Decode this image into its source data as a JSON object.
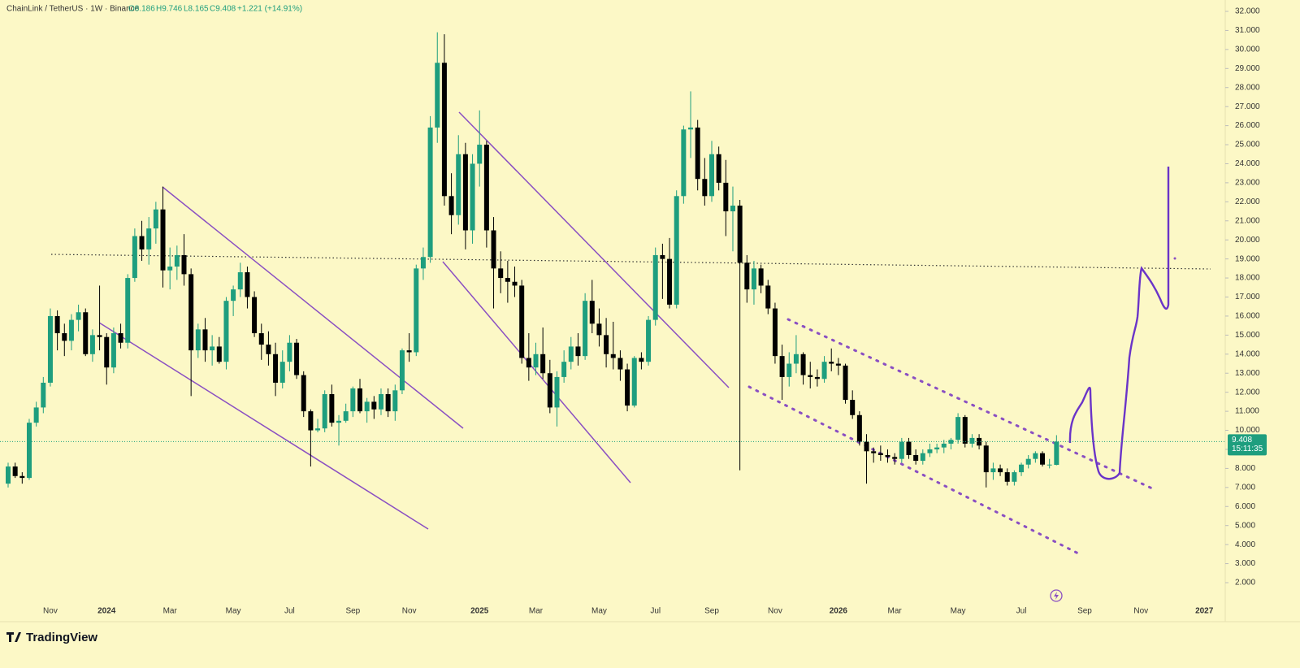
{
  "header": {
    "symbol": "ChainLink / TetherUS · 1W · Binance",
    "open": "O8.186",
    "high": "H9.746",
    "low": "L8.165",
    "close": "C9.408",
    "change": "+1.221 (+14.91%)"
  },
  "chart_data": {
    "type": "candlestick",
    "up_color": "#1e9e7e",
    "down_color": "#000000",
    "ylim": [
      2,
      32
    ],
    "yticks": [
      {
        "value": 2,
        "label": "2.000"
      },
      {
        "value": 3,
        "label": "3.000"
      },
      {
        "value": 4,
        "label": "4.000"
      },
      {
        "value": 5,
        "label": "5.000"
      },
      {
        "value": 6,
        "label": "6.000"
      },
      {
        "value": 7,
        "label": "7.000"
      },
      {
        "value": 8,
        "label": "8.000"
      },
      {
        "value": 9,
        "label": "9.000"
      },
      {
        "value": 10,
        "label": "10.000"
      },
      {
        "value": 11,
        "label": "11.000"
      },
      {
        "value": 12,
        "label": "12.000"
      },
      {
        "value": 13,
        "label": "13.000"
      },
      {
        "value": 14,
        "label": "14.000"
      },
      {
        "value": 15,
        "label": "15.000"
      },
      {
        "value": 16,
        "label": "16.000"
      },
      {
        "value": 17,
        "label": "17.000"
      },
      {
        "value": 18,
        "label": "18.000"
      },
      {
        "value": 19,
        "label": "19.000"
      },
      {
        "value": 20,
        "label": "20.000"
      },
      {
        "value": 21,
        "label": "21.000"
      },
      {
        "value": 22,
        "label": "22.000"
      },
      {
        "value": 23,
        "label": "23.000"
      },
      {
        "value": 24,
        "label": "24.000"
      },
      {
        "value": 25,
        "label": "25.000"
      },
      {
        "value": 26,
        "label": "26.000"
      },
      {
        "value": 27,
        "label": "27.000"
      },
      {
        "value": 28,
        "label": "28.000"
      },
      {
        "value": 29,
        "label": "29.000"
      },
      {
        "value": 30,
        "label": "30.000"
      },
      {
        "value": 31,
        "label": "31.000"
      },
      {
        "value": 32,
        "label": "32.000"
      }
    ],
    "last_price": 9.408,
    "countdown": "15:11:35",
    "categories": [
      null,
      null,
      null,
      null,
      null,
      null,
      "Nov",
      null,
      null,
      null,
      null,
      null,
      null,
      null,
      "2024",
      null,
      null,
      null,
      null,
      null,
      null,
      null,
      null,
      "Mar",
      null,
      null,
      null,
      null,
      null,
      null,
      null,
      null,
      "May",
      null,
      null,
      null,
      null,
      null,
      null,
      null,
      "Jul",
      null,
      null,
      null,
      null,
      null,
      null,
      null,
      null,
      "Sep",
      null,
      null,
      null,
      null,
      null,
      null,
      null,
      "Nov",
      null,
      null,
      null,
      null,
      null,
      null,
      null,
      null,
      null,
      "2025",
      null,
      null,
      null,
      null,
      null,
      null,
      null,
      "Mar",
      null,
      null,
      null,
      null,
      null,
      null,
      null,
      null,
      "May",
      null,
      null,
      null,
      null,
      null,
      null,
      null,
      "Jul",
      null,
      null,
      null,
      null,
      null,
      null,
      null,
      "Sep",
      null,
      null,
      null,
      null,
      null,
      null,
      null,
      null,
      "Nov",
      null,
      null,
      null,
      null,
      null,
      null,
      null,
      null,
      "2026",
      null,
      null,
      null,
      null,
      null,
      null,
      null,
      "Mar",
      null,
      null,
      null,
      null,
      null,
      null,
      null,
      null,
      "May",
      null,
      null,
      null,
      null,
      null,
      null,
      null,
      null,
      "Jul",
      null,
      null,
      null,
      null,
      null,
      null,
      null,
      null,
      "Sep",
      null,
      null,
      null,
      null,
      null,
      null,
      null,
      "Nov",
      null,
      null,
      null,
      null,
      null,
      null,
      null,
      null,
      "2027"
    ],
    "ohlc": [
      [
        7.2,
        8.3,
        7.0,
        8.1
      ],
      [
        8.1,
        8.3,
        7.5,
        7.6
      ],
      [
        7.6,
        7.8,
        7.2,
        7.5
      ],
      [
        7.5,
        10.6,
        7.4,
        10.4
      ],
      [
        10.4,
        11.5,
        10.2,
        11.2
      ],
      [
        11.2,
        12.8,
        10.9,
        12.5
      ],
      [
        12.5,
        16.4,
        12.3,
        16.0
      ],
      [
        16.0,
        16.3,
        14.2,
        15.1
      ],
      [
        15.1,
        15.6,
        13.9,
        14.7
      ],
      [
        14.7,
        16.1,
        14.2,
        15.8
      ],
      [
        15.8,
        16.6,
        15.2,
        16.2
      ],
      [
        16.2,
        16.4,
        13.9,
        14.0
      ],
      [
        14.0,
        15.3,
        13.6,
        15.0
      ],
      [
        15.0,
        17.6,
        14.2,
        14.9
      ],
      [
        14.9,
        15.1,
        12.4,
        13.3
      ],
      [
        13.3,
        15.4,
        13.0,
        15.1
      ],
      [
        15.1,
        15.6,
        14.3,
        14.6
      ],
      [
        14.6,
        18.2,
        14.3,
        18.0
      ],
      [
        18.0,
        20.6,
        17.8,
        20.2
      ],
      [
        20.2,
        21.0,
        18.9,
        19.5
      ],
      [
        19.5,
        21.2,
        18.7,
        20.6
      ],
      [
        20.6,
        22.0,
        19.8,
        21.6
      ],
      [
        21.6,
        22.8,
        17.5,
        18.4
      ],
      [
        18.4,
        19.6,
        17.4,
        18.6
      ],
      [
        18.6,
        19.7,
        17.9,
        19.2
      ],
      [
        19.2,
        20.3,
        17.6,
        18.2
      ],
      [
        18.2,
        18.5,
        11.8,
        14.2
      ],
      [
        14.2,
        15.6,
        13.8,
        15.3
      ],
      [
        15.3,
        15.9,
        13.6,
        14.2
      ],
      [
        14.2,
        15.0,
        13.4,
        14.4
      ],
      [
        14.4,
        14.9,
        13.5,
        13.6
      ],
      [
        13.6,
        17.0,
        13.2,
        16.8
      ],
      [
        16.8,
        17.6,
        16.0,
        17.4
      ],
      [
        17.4,
        18.8,
        17.0,
        18.3
      ],
      [
        18.3,
        18.6,
        16.4,
        17.0
      ],
      [
        17.0,
        17.3,
        14.9,
        15.1
      ],
      [
        15.1,
        15.6,
        13.7,
        14.5
      ],
      [
        14.5,
        15.2,
        13.4,
        14.0
      ],
      [
        14.0,
        14.6,
        11.8,
        12.5
      ],
      [
        12.5,
        14.2,
        12.2,
        13.6
      ],
      [
        13.6,
        15.0,
        13.1,
        14.6
      ],
      [
        14.6,
        14.8,
        12.7,
        12.9
      ],
      [
        12.9,
        13.1,
        10.7,
        11.0
      ],
      [
        11.0,
        11.1,
        8.1,
        10.0
      ],
      [
        10.0,
        10.6,
        9.9,
        10.1
      ],
      [
        10.1,
        12.1,
        9.9,
        11.9
      ],
      [
        11.9,
        12.4,
        10.2,
        10.4
      ],
      [
        10.4,
        10.8,
        9.2,
        10.5
      ],
      [
        10.5,
        11.4,
        10.4,
        11.0
      ],
      [
        11.0,
        12.3,
        10.7,
        12.2
      ],
      [
        12.2,
        12.7,
        10.9,
        11.0
      ],
      [
        11.0,
        11.7,
        10.4,
        11.5
      ],
      [
        11.5,
        11.8,
        10.6,
        11.1
      ],
      [
        11.1,
        12.2,
        10.8,
        11.9
      ],
      [
        11.9,
        12.2,
        10.7,
        11.0
      ],
      [
        11.0,
        12.4,
        10.5,
        12.1
      ],
      [
        12.1,
        14.3,
        11.9,
        14.2
      ],
      [
        14.2,
        15.1,
        13.6,
        14.1
      ],
      [
        14.1,
        18.7,
        13.9,
        18.5
      ],
      [
        18.5,
        19.6,
        17.9,
        19.1
      ],
      [
        19.1,
        26.5,
        18.8,
        25.9
      ],
      [
        25.9,
        30.9,
        25.1,
        29.3
      ],
      [
        29.3,
        30.8,
        21.8,
        22.3
      ],
      [
        22.3,
        23.5,
        20.3,
        21.3
      ],
      [
        21.3,
        25.5,
        20.8,
        24.5
      ],
      [
        24.5,
        25.1,
        19.5,
        20.5
      ],
      [
        20.5,
        24.5,
        19.8,
        24.0
      ],
      [
        24.0,
        26.8,
        22.8,
        25.0
      ],
      [
        25.0,
        25.2,
        19.6,
        20.5
      ],
      [
        20.5,
        21.2,
        16.4,
        18.5
      ],
      [
        18.5,
        19.4,
        17.2,
        18.0
      ],
      [
        18.0,
        18.9,
        16.7,
        17.8
      ],
      [
        17.8,
        18.6,
        17.0,
        17.6
      ],
      [
        17.6,
        17.9,
        13.5,
        13.8
      ],
      [
        13.8,
        15.1,
        12.6,
        13.3
      ],
      [
        13.3,
        14.6,
        12.9,
        14.0
      ],
      [
        14.0,
        15.4,
        12.7,
        13.0
      ],
      [
        13.0,
        13.7,
        10.9,
        11.2
      ],
      [
        11.2,
        13.1,
        10.2,
        12.8
      ],
      [
        12.8,
        14.2,
        12.5,
        13.6
      ],
      [
        13.6,
        14.9,
        13.2,
        14.4
      ],
      [
        14.4,
        15.1,
        13.4,
        13.9
      ],
      [
        13.9,
        17.2,
        13.7,
        16.8
      ],
      [
        16.8,
        17.9,
        15.1,
        15.6
      ],
      [
        15.6,
        16.4,
        14.4,
        15.0
      ],
      [
        15.0,
        15.9,
        13.3,
        14.0
      ],
      [
        14.0,
        15.7,
        13.2,
        13.8
      ],
      [
        13.8,
        14.2,
        12.6,
        13.2
      ],
      [
        13.2,
        13.5,
        11.0,
        11.3
      ],
      [
        11.3,
        13.9,
        11.2,
        13.8
      ],
      [
        13.8,
        14.1,
        13.2,
        13.6
      ],
      [
        13.6,
        16.0,
        13.4,
        15.8
      ],
      [
        15.8,
        19.6,
        15.5,
        19.2
      ],
      [
        19.2,
        19.8,
        16.9,
        19.0
      ],
      [
        19.0,
        20.1,
        16.4,
        16.6
      ],
      [
        16.6,
        22.6,
        16.4,
        22.3
      ],
      [
        22.3,
        26.0,
        21.9,
        25.8
      ],
      [
        25.8,
        27.8,
        24.3,
        25.9
      ],
      [
        25.9,
        26.3,
        22.6,
        23.2
      ],
      [
        23.2,
        24.3,
        21.8,
        22.3
      ],
      [
        22.3,
        25.2,
        22.0,
        24.5
      ],
      [
        24.5,
        24.9,
        22.6,
        23.0
      ],
      [
        23.0,
        24.2,
        20.2,
        21.5
      ],
      [
        21.5,
        22.8,
        19.4,
        21.8
      ],
      [
        21.8,
        22.1,
        7.9,
        18.8
      ],
      [
        18.8,
        19.2,
        16.7,
        17.4
      ],
      [
        17.4,
        18.9,
        16.6,
        18.5
      ],
      [
        18.5,
        18.7,
        17.2,
        17.6
      ],
      [
        17.6,
        17.9,
        16.1,
        16.4
      ],
      [
        16.4,
        16.7,
        13.5,
        13.9
      ],
      [
        13.9,
        14.5,
        11.6,
        12.8
      ],
      [
        12.8,
        14.1,
        12.3,
        13.5
      ],
      [
        13.5,
        15.0,
        13.0,
        14.0
      ],
      [
        14.0,
        14.1,
        12.4,
        12.9
      ],
      [
        12.9,
        13.6,
        12.2,
        12.8
      ],
      [
        12.8,
        13.2,
        12.3,
        12.7
      ],
      [
        12.7,
        13.9,
        12.5,
        13.6
      ],
      [
        13.6,
        14.3,
        13.1,
        13.5
      ],
      [
        13.5,
        13.8,
        12.9,
        13.4
      ],
      [
        13.4,
        13.5,
        11.4,
        11.6
      ],
      [
        11.6,
        12.1,
        10.6,
        10.8
      ],
      [
        10.8,
        11.0,
        9.2,
        9.4
      ],
      [
        9.4,
        9.8,
        7.2,
        8.9
      ],
      [
        8.9,
        9.1,
        8.3,
        8.8
      ],
      [
        8.8,
        9.2,
        8.4,
        8.7
      ],
      [
        8.7,
        9.0,
        8.3,
        8.6
      ],
      [
        8.6,
        8.8,
        8.2,
        8.5
      ],
      [
        8.5,
        9.6,
        8.3,
        9.4
      ],
      [
        9.4,
        9.6,
        8.5,
        8.7
      ],
      [
        8.7,
        9.0,
        8.2,
        8.4
      ],
      [
        8.4,
        9.0,
        8.2,
        8.8
      ],
      [
        8.8,
        9.3,
        8.6,
        9.0
      ],
      [
        9.0,
        9.3,
        8.8,
        9.1
      ],
      [
        9.1,
        9.5,
        8.8,
        9.3
      ],
      [
        9.3,
        9.6,
        9.0,
        9.5
      ],
      [
        9.5,
        10.9,
        9.3,
        10.7
      ],
      [
        10.7,
        10.8,
        9.1,
        9.3
      ],
      [
        9.3,
        9.8,
        9.1,
        9.6
      ],
      [
        9.6,
        9.8,
        9.0,
        9.2
      ],
      [
        9.2,
        9.4,
        7.0,
        7.8
      ],
      [
        7.8,
        8.3,
        7.4,
        8.0
      ],
      [
        8.0,
        8.2,
        7.6,
        7.8
      ],
      [
        7.8,
        8.0,
        7.1,
        7.3
      ],
      [
        7.3,
        7.9,
        7.1,
        7.8
      ],
      [
        7.8,
        8.3,
        7.6,
        8.2
      ],
      [
        8.2,
        8.7,
        8.0,
        8.5
      ],
      [
        8.5,
        8.9,
        8.3,
        8.8
      ],
      [
        8.8,
        8.9,
        8.1,
        8.2
      ],
      [
        8.2,
        8.5,
        8.0,
        8.2
      ],
      [
        8.186,
        9.746,
        8.165,
        9.408
      ],
      null,
      null,
      null,
      null,
      null,
      null,
      null,
      null,
      null,
      null,
      null,
      null,
      null,
      null,
      null,
      null,
      null,
      null,
      null,
      null,
      null
    ],
    "footer": "TradingView"
  }
}
